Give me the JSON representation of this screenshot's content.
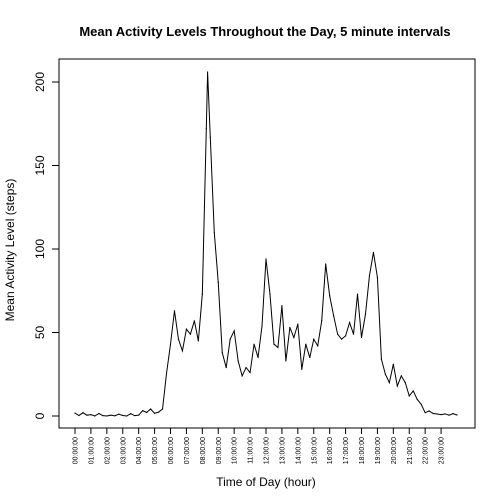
{
  "chart_data": {
    "type": "line",
    "title": "Mean Activity Levels Throughout the Day, 5 minute intervals",
    "xlabel": "Time of Day (hour)",
    "ylabel": "Mean Activity Level (steps)",
    "x_tick_labels": [
      "00:00:00",
      "01:00:00",
      "02:00:00",
      "03:00:00",
      "04:00:00",
      "05:00:00",
      "06:00:00",
      "07:00:00",
      "08:00:00",
      "09:00:00",
      "10:00:00",
      "11:00:00",
      "12:00:00",
      "13:00:00",
      "14:00:00",
      "15:00:00",
      "16:00:00",
      "17:00:00",
      "18:00:00",
      "19:00:00",
      "20:00:00",
      "21:00:00",
      "22:00:00",
      "23:00:00"
    ],
    "y_ticks": [
      0,
      50,
      100,
      150,
      200
    ],
    "ylim": [
      0,
      206
    ],
    "xlim_hours": [
      0,
      24
    ],
    "grid": false,
    "series": [
      {
        "x_hours": [
          0,
          0.25,
          0.5,
          0.75,
          1,
          1.25,
          1.5,
          1.75,
          2,
          2.25,
          2.5,
          2.75,
          3,
          3.25,
          3.5,
          3.75,
          4,
          4.25,
          4.5,
          4.75,
          5,
          5.25,
          5.5,
          5.75,
          6,
          6.25,
          6.5,
          6.75,
          7,
          7.25,
          7.5,
          7.75,
          8,
          8.25,
          8.33,
          8.5,
          8.75,
          9,
          9.25,
          9.5,
          9.75,
          10,
          10.25,
          10.5,
          10.75,
          11,
          11.25,
          11.5,
          11.75,
          12,
          12.25,
          12.5,
          12.75,
          13,
          13.25,
          13.5,
          13.75,
          14,
          14.25,
          14.5,
          14.75,
          15,
          15.25,
          15.5,
          15.75,
          16,
          16.25,
          16.5,
          16.75,
          17,
          17.25,
          17.5,
          17.75,
          18,
          18.25,
          18.5,
          18.75,
          19,
          19.25,
          19.5,
          19.75,
          20,
          20.25,
          20.5,
          20.75,
          21,
          21.25,
          21.5,
          21.75,
          22,
          22.25,
          22.5,
          22.75,
          23,
          23.25,
          23.5,
          23.75,
          24
        ],
        "values": [
          1.7,
          0.3,
          2,
          0.5,
          0.8,
          0,
          1.5,
          0.2,
          0,
          0.5,
          0.1,
          1.1,
          0.3,
          0,
          1.4,
          0.2,
          0.5,
          3.2,
          2.1,
          4.2,
          1.6,
          2.3,
          4.2,
          25.5,
          43,
          63,
          46,
          39,
          52,
          49,
          57,
          45,
          73,
          172,
          206,
          167,
          110,
          80,
          38,
          29,
          46,
          51,
          33,
          24,
          29,
          26,
          43,
          35,
          54,
          94,
          73,
          43,
          41,
          66,
          33,
          53,
          47,
          55,
          28,
          43,
          35,
          46,
          42,
          57,
          91,
          72,
          60,
          49,
          46,
          48,
          56,
          49,
          73,
          47,
          61,
          84,
          98,
          83,
          34,
          25,
          20,
          31,
          18,
          24,
          20,
          12,
          15,
          10,
          7,
          2,
          3,
          1.5,
          1.2,
          0.8,
          1.3,
          0.5,
          1.4,
          0.6
        ]
      }
    ]
  }
}
